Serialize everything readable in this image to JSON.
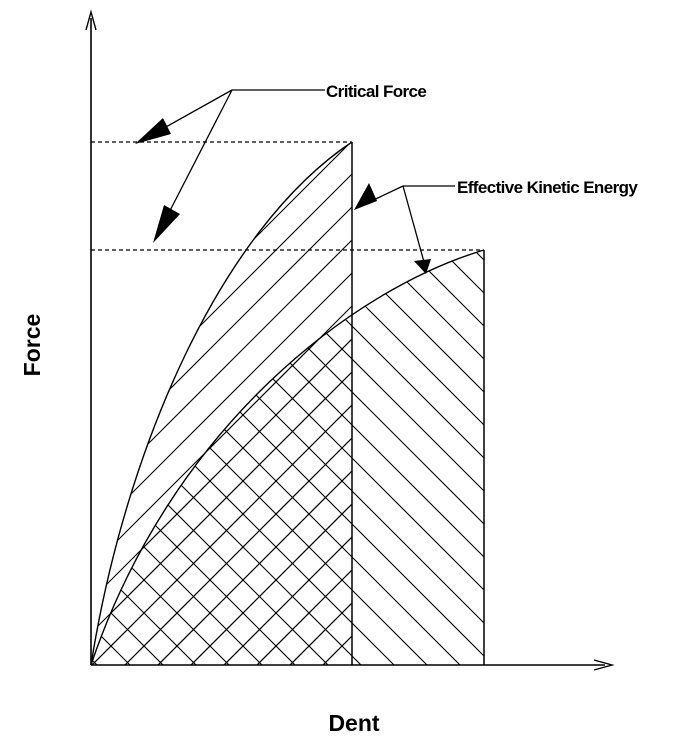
{
  "diagram": {
    "annotations": {
      "critical_force": "Critical Force",
      "effective_kinetic_energy": "Effective Kinetic Energy"
    },
    "axes": {
      "x_label": "Dent",
      "y_label": "Force"
    },
    "colors": {
      "ink": "#000000",
      "background": "#ffffff"
    }
  }
}
